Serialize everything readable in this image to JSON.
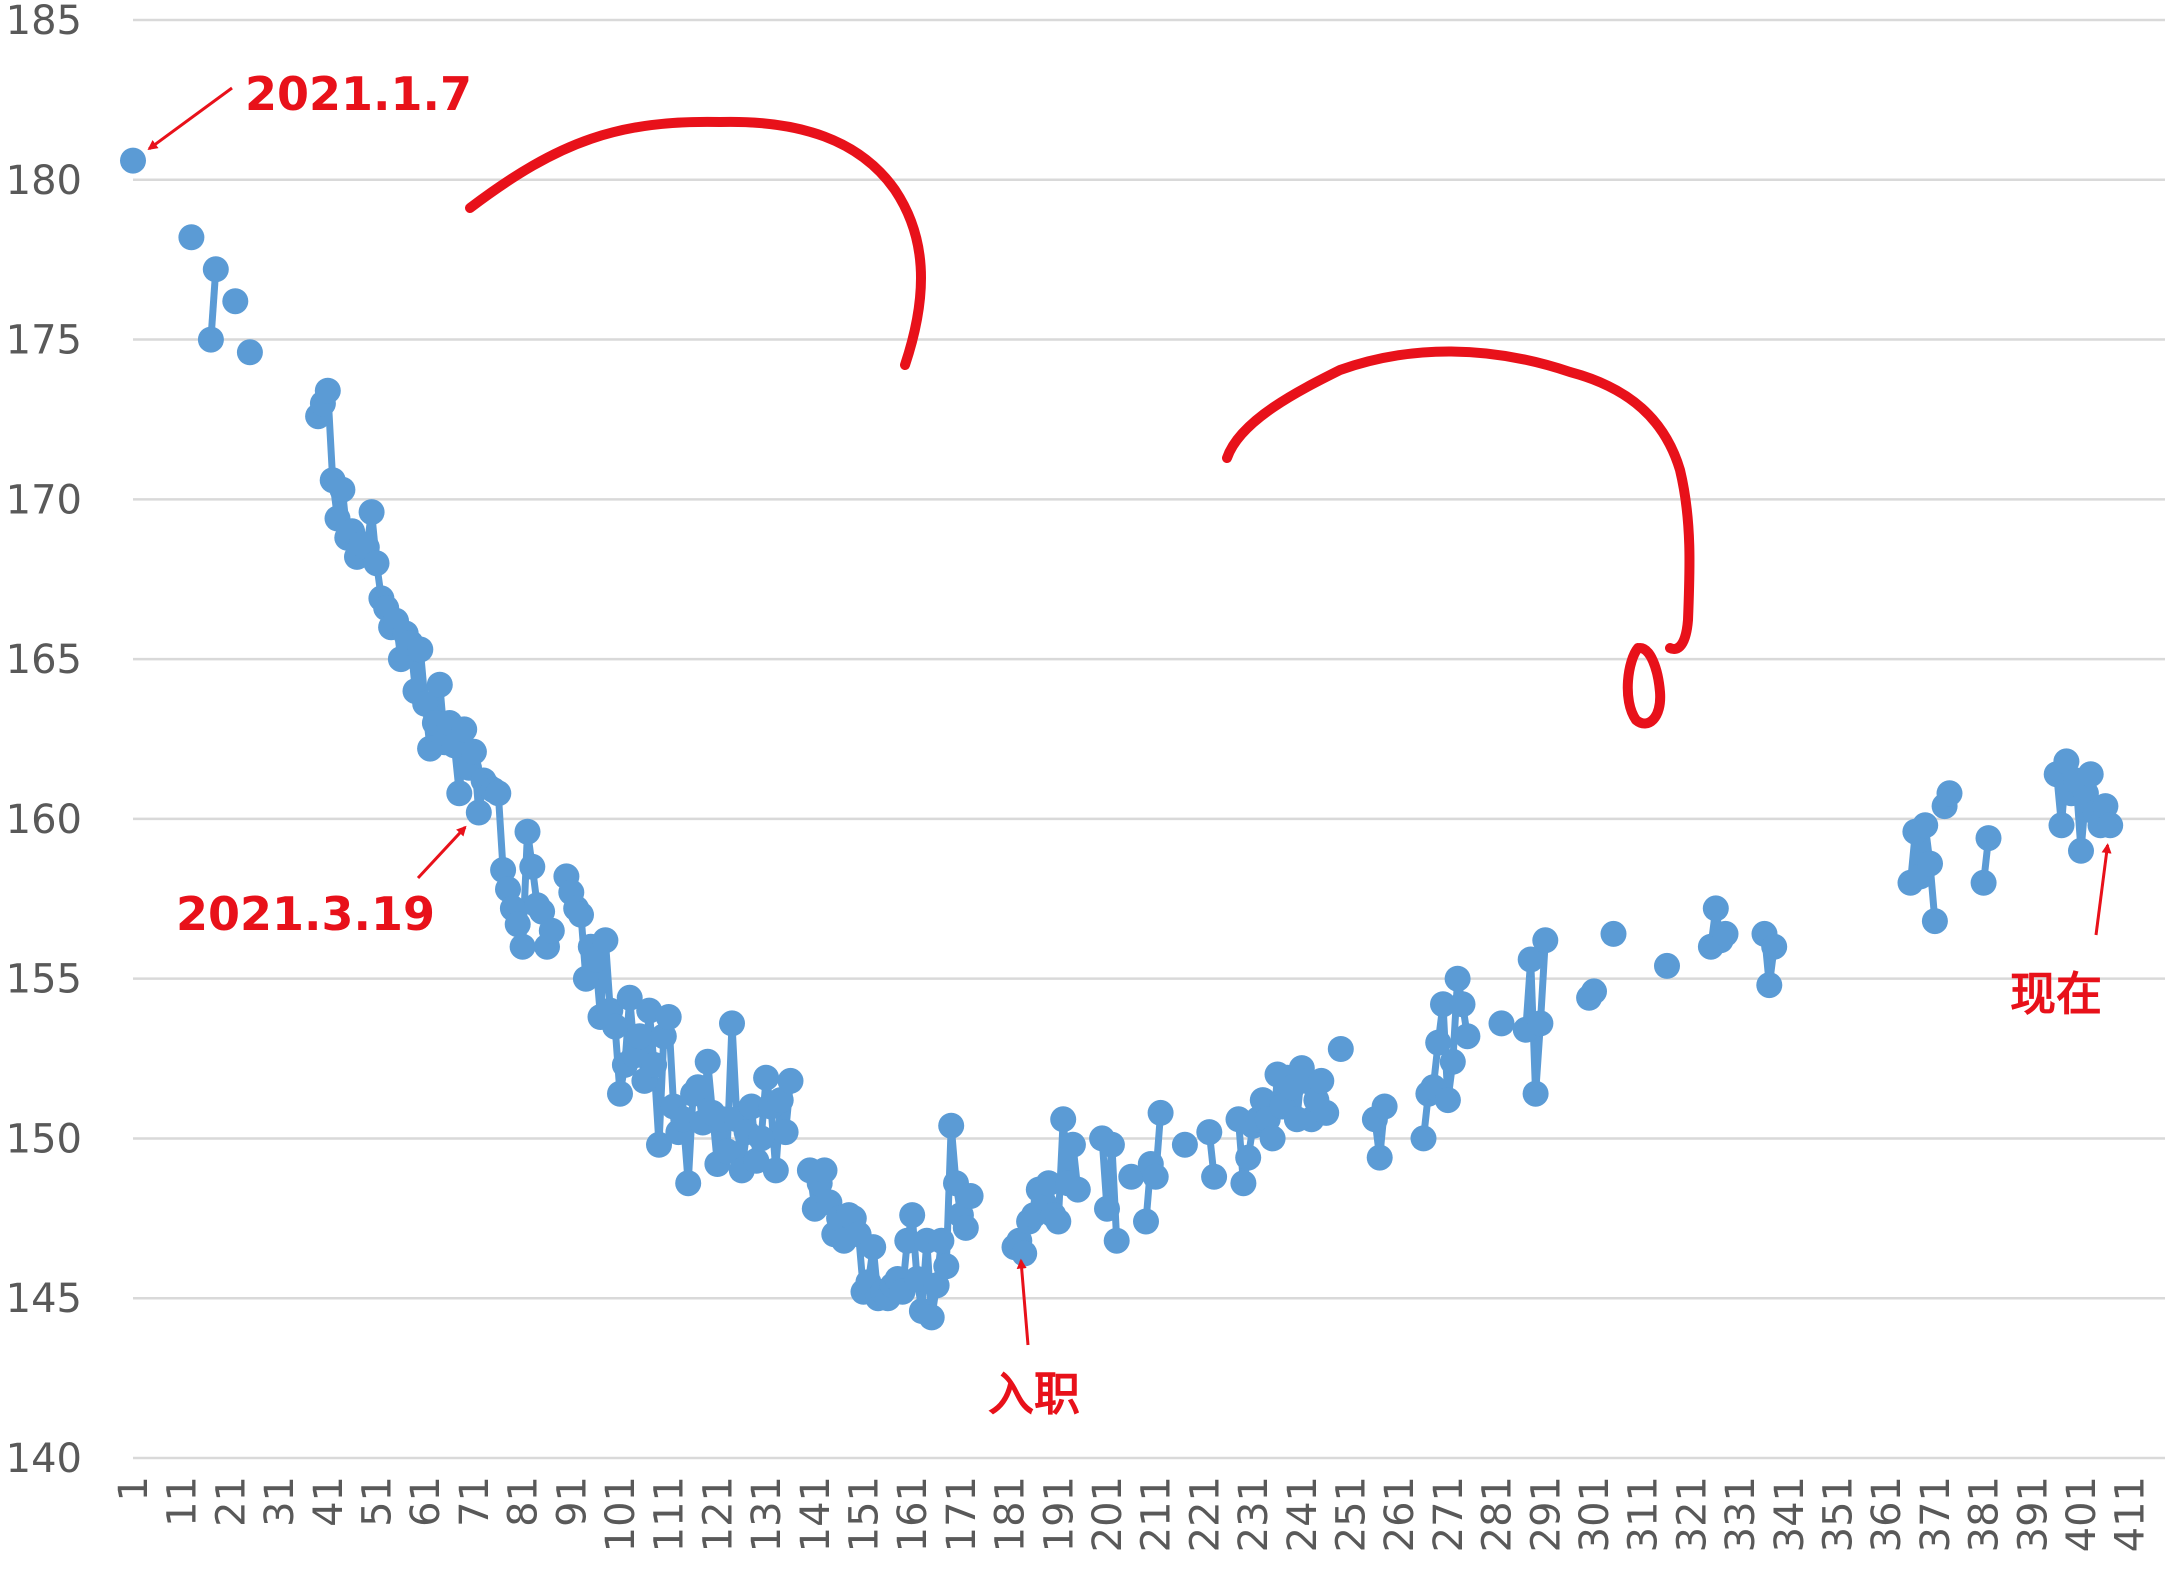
{
  "chart_data": {
    "type": "line",
    "title": "",
    "xlabel": "",
    "ylabel": "",
    "ylim": [
      140,
      185
    ],
    "yticks": [
      140,
      145,
      150,
      155,
      160,
      165,
      170,
      175,
      180,
      185
    ],
    "xticks": [
      1,
      11,
      21,
      31,
      41,
      51,
      61,
      71,
      81,
      91,
      101,
      111,
      121,
      131,
      141,
      151,
      161,
      171,
      181,
      191,
      201,
      211,
      221,
      231,
      241,
      251,
      261,
      271,
      281,
      291,
      301,
      311,
      321,
      331,
      341,
      351,
      361,
      371,
      381,
      391,
      401,
      411
    ],
    "xlim": [
      1,
      417
    ],
    "grid": true,
    "legend": "none",
    "series_color": "#5b9bd5",
    "annotation_color": "#e8111a",
    "segments": [
      [
        [
          1,
          180.6
        ]
      ],
      [
        [
          13,
          178.2
        ]
      ],
      [
        [
          17,
          175.0
        ],
        [
          18,
          177.2
        ]
      ],
      [
        [
          22,
          176.2
        ]
      ],
      [
        [
          25,
          174.6
        ]
      ],
      [
        [
          39,
          172.6
        ],
        [
          40,
          173.0
        ],
        [
          41,
          173.4
        ],
        [
          42,
          170.6
        ],
        [
          43,
          169.4
        ],
        [
          44,
          170.3
        ],
        [
          45,
          168.8
        ],
        [
          46,
          169.0
        ],
        [
          47,
          168.2
        ],
        [
          48,
          168.6
        ],
        [
          49,
          168.5
        ],
        [
          50,
          169.6
        ],
        [
          51,
          168.0
        ],
        [
          52,
          166.9
        ],
        [
          53,
          166.6
        ],
        [
          54,
          166.0
        ],
        [
          55,
          166.2
        ],
        [
          56,
          165.0
        ],
        [
          57,
          165.8
        ],
        [
          58,
          165.5
        ],
        [
          59,
          164.0
        ],
        [
          60,
          165.3
        ],
        [
          61,
          163.6
        ],
        [
          62,
          162.2
        ],
        [
          63,
          163.0
        ],
        [
          64,
          164.2
        ],
        [
          65,
          162.4
        ],
        [
          66,
          163.0
        ],
        [
          67,
          162.3
        ],
        [
          68,
          160.8
        ],
        [
          69,
          162.8
        ],
        [
          70,
          161.6
        ],
        [
          71,
          162.1
        ],
        [
          72,
          160.2
        ],
        [
          73,
          161.2
        ],
        [
          74,
          161.0
        ],
        [
          75,
          160.9
        ],
        [
          76,
          160.8
        ],
        [
          77,
          158.4
        ],
        [
          78,
          157.8
        ],
        [
          79,
          157.2
        ],
        [
          80,
          156.7
        ],
        [
          81,
          156.0
        ],
        [
          82,
          159.6
        ],
        [
          83,
          158.5
        ],
        [
          84,
          157.3
        ],
        [
          85,
          157.1
        ],
        [
          86,
          156.0
        ],
        [
          87,
          156.5
        ]
      ],
      [
        [
          90,
          158.2
        ],
        [
          91,
          157.7
        ],
        [
          92,
          157.2
        ],
        [
          93,
          157.0
        ],
        [
          94,
          155.0
        ],
        [
          95,
          156.0
        ],
        [
          96,
          155.6
        ],
        [
          97,
          153.8
        ],
        [
          98,
          156.2
        ],
        [
          99,
          154.0
        ],
        [
          100,
          153.5
        ],
        [
          101,
          151.4
        ],
        [
          102,
          152.3
        ],
        [
          103,
          154.4
        ],
        [
          104,
          152.6
        ],
        [
          105,
          153.2
        ],
        [
          106,
          151.8
        ],
        [
          107,
          154.0
        ],
        [
          108,
          152.3
        ],
        [
          109,
          149.8
        ],
        [
          110,
          153.2
        ],
        [
          111,
          153.8
        ],
        [
          112,
          151.0
        ],
        [
          113,
          150.2
        ],
        [
          114,
          150.6
        ],
        [
          115,
          148.6
        ],
        [
          116,
          151.4
        ],
        [
          117,
          151.6
        ],
        [
          118,
          150.5
        ],
        [
          119,
          152.4
        ],
        [
          120,
          150.8
        ],
        [
          121,
          149.2
        ],
        [
          122,
          150.6
        ],
        [
          123,
          149.6
        ],
        [
          124,
          153.6
        ],
        [
          125,
          150.6
        ],
        [
          126,
          149.0
        ],
        [
          127,
          150.2
        ],
        [
          128,
          151.0
        ],
        [
          129,
          149.3
        ],
        [
          130,
          150.0
        ],
        [
          131,
          151.9
        ],
        [
          132,
          151.0
        ],
        [
          133,
          149.0
        ],
        [
          134,
          151.2
        ],
        [
          135,
          150.2
        ],
        [
          136,
          151.8
        ]
      ],
      [
        [
          140,
          149.0
        ],
        [
          141,
          147.8
        ],
        [
          142,
          148.6
        ],
        [
          143,
          149.0
        ],
        [
          144,
          148.0
        ],
        [
          145,
          147.0
        ],
        [
          146,
          147.5
        ],
        [
          147,
          146.8
        ],
        [
          148,
          147.6
        ],
        [
          149,
          147.5
        ],
        [
          150,
          147.0
        ],
        [
          151,
          145.2
        ],
        [
          152,
          145.5
        ],
        [
          153,
          146.6
        ],
        [
          154,
          145.0
        ],
        [
          155,
          145.2
        ],
        [
          156,
          145.0
        ],
        [
          157,
          145.4
        ],
        [
          158,
          145.6
        ],
        [
          159,
          145.2
        ],
        [
          160,
          146.8
        ],
        [
          161,
          147.6
        ],
        [
          162,
          145.6
        ],
        [
          163,
          144.6
        ],
        [
          164,
          146.8
        ],
        [
          165,
          144.4
        ],
        [
          166,
          145.4
        ],
        [
          167,
          146.8
        ],
        [
          168,
          146.0
        ],
        [
          169,
          150.4
        ],
        [
          170,
          148.6
        ],
        [
          171,
          147.6
        ],
        [
          172,
          147.2
        ],
        [
          173,
          148.2
        ]
      ],
      [
        [
          182,
          146.6
        ],
        [
          183,
          146.8
        ],
        [
          184,
          146.4
        ],
        [
          185,
          147.4
        ],
        [
          186,
          147.6
        ],
        [
          187,
          148.4
        ],
        [
          188,
          148.0
        ],
        [
          189,
          148.6
        ],
        [
          190,
          147.6
        ],
        [
          191,
          147.4
        ],
        [
          192,
          150.6
        ],
        [
          193,
          148.6
        ],
        [
          194,
          149.8
        ],
        [
          195,
          148.4
        ]
      ],
      [
        [
          200,
          150.0
        ],
        [
          201,
          147.8
        ],
        [
          202,
          149.8
        ],
        [
          203,
          146.8
        ]
      ],
      [
        [
          206,
          148.8
        ]
      ],
      [
        [
          209,
          147.4
        ],
        [
          210,
          149.2
        ],
        [
          211,
          148.8
        ],
        [
          212,
          150.8
        ]
      ],
      [
        [
          217,
          149.8
        ]
      ],
      [
        [
          222,
          150.2
        ],
        [
          223,
          148.8
        ]
      ],
      [
        [
          228,
          150.6
        ],
        [
          229,
          148.6
        ],
        [
          230,
          149.4
        ],
        [
          231,
          150.4
        ],
        [
          232,
          150.6
        ],
        [
          233,
          151.2
        ],
        [
          234,
          150.6
        ],
        [
          235,
          150.0
        ],
        [
          236,
          152.0
        ],
        [
          237,
          151.0
        ],
        [
          238,
          151.9
        ],
        [
          239,
          151.6
        ],
        [
          240,
          150.6
        ],
        [
          241,
          152.2
        ],
        [
          242,
          151.8
        ],
        [
          243,
          150.6
        ],
        [
          244,
          151.2
        ],
        [
          245,
          151.8
        ],
        [
          246,
          150.8
        ]
      ],
      [
        [
          249,
          152.8
        ]
      ],
      [
        [
          256,
          150.6
        ],
        [
          257,
          149.4
        ],
        [
          258,
          151.0
        ]
      ],
      [
        [
          266,
          150.0
        ],
        [
          267,
          151.4
        ],
        [
          268,
          151.6
        ],
        [
          269,
          153.0
        ],
        [
          270,
          154.2
        ],
        [
          271,
          151.2
        ],
        [
          272,
          152.4
        ],
        [
          273,
          155.0
        ],
        [
          274,
          154.2
        ],
        [
          275,
          153.2
        ]
      ],
      [
        [
          282,
          153.6
        ]
      ],
      [
        [
          287,
          153.4
        ],
        [
          288,
          155.6
        ],
        [
          289,
          151.4
        ],
        [
          290,
          153.6
        ],
        [
          291,
          156.2
        ]
      ],
      [
        [
          300,
          154.4
        ],
        [
          301,
          154.6
        ]
      ],
      [
        [
          305,
          156.4
        ]
      ],
      [
        [
          316,
          155.4
        ]
      ],
      [
        [
          325,
          156.0
        ],
        [
          326,
          157.2
        ],
        [
          327,
          156.2
        ],
        [
          328,
          156.4
        ]
      ],
      [
        [
          336,
          156.4
        ],
        [
          337,
          154.8
        ],
        [
          338,
          156.0
        ]
      ],
      [
        [
          366,
          158.0
        ],
        [
          367,
          159.6
        ],
        [
          368,
          158.2
        ],
        [
          369,
          159.8
        ],
        [
          370,
          158.6
        ],
        [
          371,
          156.8
        ]
      ],
      [
        [
          373,
          160.4
        ],
        [
          374,
          160.8
        ]
      ],
      [
        [
          381,
          158.0
        ],
        [
          382,
          159.4
        ]
      ],
      [
        [
          396,
          161.4
        ],
        [
          397,
          159.8
        ],
        [
          398,
          161.8
        ],
        [
          399,
          160.8
        ],
        [
          400,
          161.2
        ],
        [
          401,
          159.0
        ],
        [
          402,
          160.8
        ],
        [
          403,
          161.4
        ],
        [
          404,
          160.2
        ],
        [
          405,
          159.8
        ],
        [
          406,
          160.4
        ],
        [
          407,
          159.8
        ]
      ]
    ],
    "annotations": [
      {
        "text": "2021.1.7",
        "target": [
          1,
          180.6
        ]
      },
      {
        "text": "2021.3.19",
        "target": [
          72,
          160.2
        ]
      },
      {
        "text": "入职",
        "target": [
          183,
          146.8
        ]
      },
      {
        "text": "现在",
        "target": [
          407,
          159.8
        ]
      }
    ],
    "drawn_marks": [
      "arc-1",
      "arc-2",
      "small-loop"
    ]
  }
}
